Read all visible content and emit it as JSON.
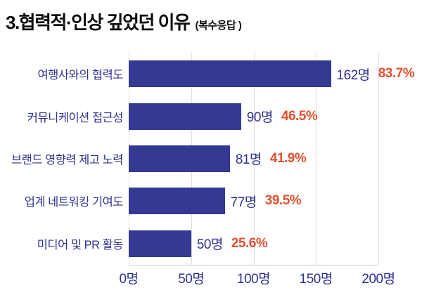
{
  "title": {
    "main": "3.협력적·인상 깊었던 이유",
    "sub": "(복수응답 )"
  },
  "colors": {
    "bar": "#343a94",
    "category_label": "#2e3192",
    "value_label": "#2e3192",
    "percent_label": "#e2512f",
    "tick_label": "#2e3192",
    "gridline": "#dedede",
    "axis_line": "#c9c9c9",
    "title": "#0d0d0d",
    "background": "#ffffff"
  },
  "chart_data": {
    "type": "bar",
    "orientation": "horizontal",
    "title": "3.협력적·인상 깊었던 이유 (복수응답)",
    "categories": [
      "여행사와의 협력도",
      "커뮤니케이션 접근성",
      "브랜드 영향력 제고 노력",
      "업계 네트워킹 기여도",
      "미디어 및 PR 활동"
    ],
    "values": [
      162,
      90,
      81,
      77,
      50
    ],
    "value_labels": [
      "162명",
      "90명",
      "81명",
      "77명",
      "50명"
    ],
    "percent_labels": [
      "83.7%",
      "46.5%",
      "41.9%",
      "39.5%",
      "25.6%"
    ],
    "xlabel": "",
    "ylabel": "",
    "xlim": [
      0,
      200
    ],
    "x_ticks": [
      {
        "value": 0,
        "label": "0명"
      },
      {
        "value": 50,
        "label": "50명"
      },
      {
        "value": 100,
        "label": "100명"
      },
      {
        "value": 150,
        "label": "150명"
      },
      {
        "value": 200,
        "label": "200명"
      }
    ],
    "grid": true,
    "legend": false
  }
}
